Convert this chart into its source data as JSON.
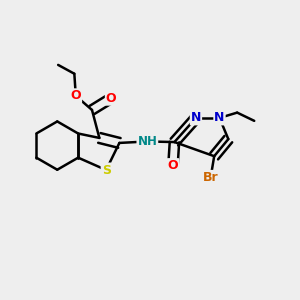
{
  "background_color": "#eeeeee",
  "bond_color": "#000000",
  "bond_width": 1.8,
  "figsize": [
    3.0,
    3.0
  ],
  "dpi": 100,
  "colors": {
    "S": "#cccc00",
    "O": "#ff0000",
    "N": "#0000cc",
    "NH": "#008888",
    "Br": "#cc6600",
    "C": "#000000"
  }
}
